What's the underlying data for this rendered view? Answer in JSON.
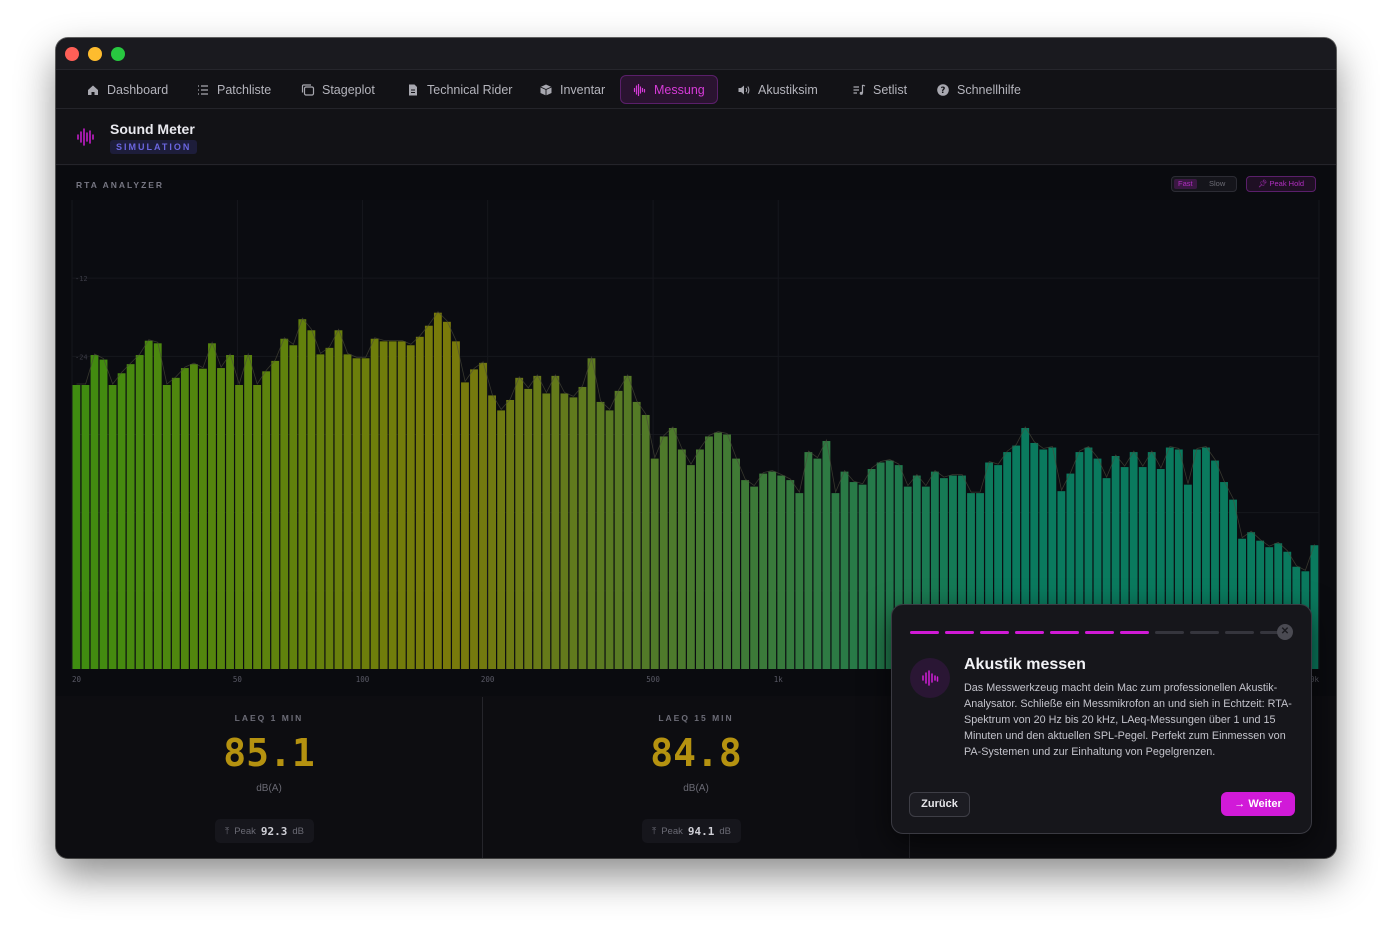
{
  "nav": {
    "items": [
      {
        "label": "Dashboard",
        "icon": "home-icon"
      },
      {
        "label": "Patchliste",
        "icon": "list-icon"
      },
      {
        "label": "Stageplot",
        "icon": "layers-icon"
      },
      {
        "label": "Technical Rider",
        "icon": "document-icon"
      },
      {
        "label": "Inventar",
        "icon": "box-icon"
      },
      {
        "label": "Messung",
        "icon": "waveform-icon"
      },
      {
        "label": "Akustiksim",
        "icon": "speaker-icon"
      },
      {
        "label": "Setlist",
        "icon": "music-list-icon"
      },
      {
        "label": "Schnellhilfe",
        "icon": "help-icon"
      }
    ],
    "active": "Messung"
  },
  "header": {
    "title": "Sound Meter",
    "badge": "SIMULATION"
  },
  "rta": {
    "label": "RTA ANALYZER",
    "fast_label": "Fast",
    "slow_label": "Slow",
    "peak_hold_label": "Peak Hold"
  },
  "chart_data": {
    "type": "bar",
    "title": "RTA ANALYZER",
    "x_scale": "log",
    "x_ticks": [
      {
        "hz": 20,
        "label": "20"
      },
      {
        "hz": 50,
        "label": "50"
      },
      {
        "hz": 100,
        "label": "100"
      },
      {
        "hz": 200,
        "label": "200"
      },
      {
        "hz": 500,
        "label": "500"
      },
      {
        "hz": 1000,
        "label": "1k"
      },
      {
        "hz": 20000,
        "label": "20k"
      }
    ],
    "y_ticks": [
      -12,
      -24
    ],
    "ylim": [
      -72,
      0
    ],
    "grid": true,
    "bands": 120,
    "values_db": [
      -28.4,
      -28.4,
      -23.8,
      -24.5,
      -28.4,
      -26.6,
      -25.2,
      -23.8,
      -21.6,
      -22.0,
      -28.4,
      -27.3,
      -25.8,
      -25.2,
      -25.9,
      -22.0,
      -25.8,
      -23.8,
      -28.4,
      -23.8,
      -28.4,
      -26.3,
      -24.7,
      -21.3,
      -22.3,
      -18.3,
      -20.0,
      -23.7,
      -22.7,
      -20.0,
      -23.7,
      -24.3,
      -24.3,
      -21.3,
      -21.7,
      -21.7,
      -21.7,
      -22.3,
      -21.0,
      -19.3,
      -17.3,
      -18.7,
      -21.7,
      -28.0,
      -26.0,
      -25.0,
      -30.0,
      -32.3,
      -30.7,
      -27.3,
      -29.0,
      -27.0,
      -29.7,
      -27.0,
      -29.7,
      -30.3,
      -28.7,
      -24.3,
      -31.0,
      -32.3,
      -29.3,
      -27.0,
      -31.0,
      -33.0,
      -39.7,
      -36.3,
      -35.0,
      -38.3,
      -40.7,
      -38.3,
      -36.3,
      -35.7,
      -36.0,
      -39.7,
      -43.0,
      -44.0,
      -42.0,
      -41.7,
      -42.3,
      -43.0,
      -45.0,
      -38.7,
      -39.7,
      -37.0,
      -45.0,
      -41.7,
      -43.3,
      -43.7,
      -41.3,
      -40.3,
      -40.0,
      -40.7,
      -44.0,
      -42.3,
      -44.0,
      -41.7,
      -42.7,
      -42.3,
      -42.3,
      -45.0,
      -45.0,
      -40.3,
      -40.7,
      -38.7,
      -37.7,
      -35.0,
      -37.3,
      -38.3,
      -38.0,
      -44.7,
      -42.0,
      -38.7,
      -38.0,
      -39.7,
      -42.7,
      -39.3,
      -41.0,
      -38.7,
      -41.0,
      -38.7
    ],
    "values_db_tail": [
      -41.3,
      -38.0,
      -38.3,
      -43.7,
      -38.3,
      -38.0,
      -40.0,
      -43.3,
      -46.0,
      -52.0,
      -51.0,
      -52.3,
      -53.3,
      -52.7,
      -54.0,
      -56.3,
      -57.0,
      -53.0
    ]
  },
  "cards": [
    {
      "title": "LAEQ 1 MIN",
      "value": "85.1",
      "unit": "dB(A)",
      "peak_label": "Peak",
      "peak_value": "92.3",
      "peak_unit": "dB"
    },
    {
      "title": "LAEQ 15 MIN",
      "value": "84.8",
      "unit": "dB(A)",
      "peak_label": "Peak",
      "peak_value": "94.1",
      "peak_unit": "dB"
    }
  ],
  "tour": {
    "title": "Akustik messen",
    "text": "Das Messwerkzeug macht dein Mac zum professionellen Akustik-Analysator. Schließe ein Messmikrofon an und sieh in Echtzeit: RTA-Spektrum von 20 Hz bis 20 kHz, LAeq-Messungen über 1 und 15 Minuten und den aktuellen SPL-Pegel. Perfekt zum Einmessen von PA-Systemen und zur Einhaltung von Pegelgrenzen.",
    "back_label": "Zurück",
    "next_label": "Weiter",
    "next_icon": "arrow-right-icon",
    "steps_total": 11,
    "steps_done": 7
  },
  "colors": {
    "accent": "#d01ad6",
    "value": "#b59210",
    "bar_low": "#3f8c10",
    "bar_mid": "#7a7a0a",
    "bar_high": "#0a7a5e"
  }
}
